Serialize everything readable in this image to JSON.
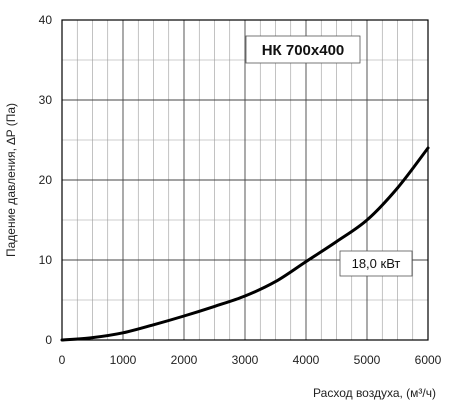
{
  "chart_data": {
    "type": "line",
    "title": "НК 700х400",
    "xlabel": "Расход воздуха, (м³/ч)",
    "ylabel": "Падение давления, ∆P (Па)",
    "xlim": [
      0,
      6000
    ],
    "ylim": [
      0,
      40
    ],
    "x_ticks": [
      "0",
      "1000",
      "2000",
      "3000",
      "4000",
      "5000",
      "6000"
    ],
    "y_ticks": [
      "0",
      "10",
      "20",
      "30",
      "40"
    ],
    "grid": true,
    "annotation": "18,0 кВт",
    "series": [
      {
        "color": "#000000",
        "x": [
          0,
          500,
          1000,
          1500,
          2000,
          2500,
          3000,
          3500,
          4000,
          4500,
          5000,
          5500,
          6000
        ],
        "y": [
          0,
          0.3,
          0.9,
          1.9,
          3.0,
          4.2,
          5.5,
          7.3,
          9.8,
          12.3,
          15.0,
          19.0,
          24.0
        ]
      }
    ]
  }
}
